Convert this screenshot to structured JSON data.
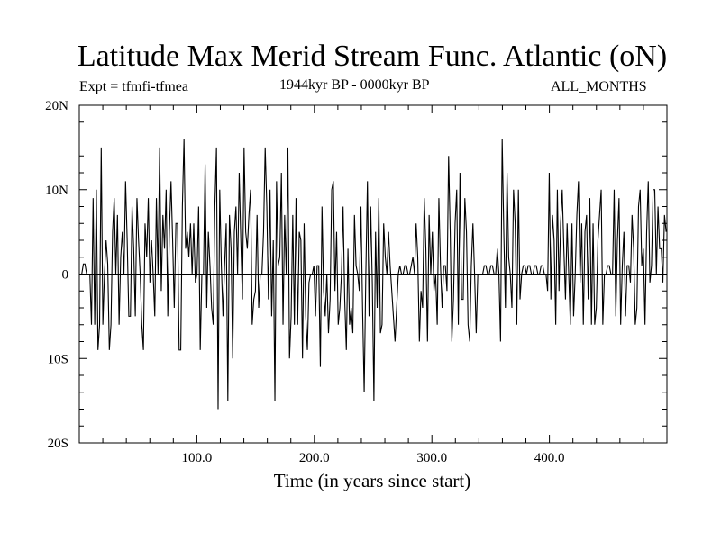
{
  "chart_data": {
    "type": "line",
    "title": "Latitude Max Merid Stream Func. Atlantic (oN)",
    "subtitle_left": "Expt = tfmfi-tfmea",
    "subtitle_center": "1944kyr BP - 0000kyr BP",
    "subtitle_right": "ALL_MONTHS",
    "xlabel": "Time (in years since start)",
    "ylabel": "",
    "xlim": [
      0,
      500
    ],
    "ylim": [
      -20,
      20
    ],
    "x_ticks": [
      100,
      200,
      300,
      400
    ],
    "x_tick_labels": [
      "100.0",
      "200.0",
      "300.0",
      "400.0"
    ],
    "y_ticks": [
      -20,
      -10,
      0,
      10,
      20
    ],
    "y_tick_labels": [
      "20S",
      "10S",
      "0",
      "10N",
      "20N"
    ],
    "grid": false,
    "series": [
      {
        "values": [
          0,
          0,
          1.2,
          1.2,
          0,
          0,
          0,
          -6,
          9,
          -6,
          10,
          -9,
          -6,
          15,
          -6,
          0,
          4,
          1.2,
          -9,
          -6,
          5,
          9,
          0,
          7,
          -6,
          2,
          5,
          0,
          11,
          4,
          -5,
          -5,
          8,
          3,
          -5,
          9,
          4,
          0,
          -6,
          -9,
          6,
          2,
          9,
          -1,
          4,
          0,
          -5,
          9,
          0,
          15,
          -2,
          7,
          3,
          10,
          -5,
          5,
          11,
          4,
          -4,
          6,
          6,
          -9,
          -9,
          8,
          16,
          3,
          5,
          2,
          6,
          0,
          6,
          -1,
          0,
          8,
          -9,
          0,
          0,
          13,
          -4,
          5,
          1,
          -4,
          -6,
          8,
          15,
          -16,
          10,
          1,
          -5,
          1,
          6,
          -15,
          7,
          3,
          -10,
          5,
          8,
          0,
          12,
          4,
          -3,
          15,
          5,
          3,
          7,
          10,
          -6,
          -3,
          -2,
          7,
          -4,
          0,
          0,
          5,
          15,
          8,
          -3,
          10,
          -5,
          4,
          -15,
          11,
          1,
          2,
          12,
          -6,
          7,
          0,
          15,
          -10,
          -5,
          7,
          -6,
          9,
          -6,
          5,
          4,
          -10,
          6,
          -5,
          -9,
          -1,
          0,
          0,
          1,
          -5,
          1,
          1,
          -11,
          8,
          -2,
          -5,
          0,
          -7,
          -3,
          10,
          11,
          -2,
          5,
          -6,
          -4,
          0,
          8,
          -3,
          -9,
          3,
          -6,
          -4,
          -7,
          7,
          1,
          0,
          -2,
          8,
          -4,
          -14,
          0,
          11,
          -5,
          8,
          -1,
          -15,
          5,
          -4,
          9,
          -7,
          -6,
          6,
          2,
          0,
          5,
          1,
          -2,
          -5,
          -8,
          -4,
          0,
          1,
          0,
          0,
          1,
          1,
          0,
          0,
          1,
          2,
          0,
          6,
          2,
          -8,
          -2,
          -4,
          9,
          3,
          -8,
          7,
          0,
          5,
          -2,
          0,
          -6,
          9,
          1,
          -4,
          1,
          1,
          -2,
          14,
          5,
          -8,
          -3,
          6,
          10,
          -6,
          12,
          -3,
          -3,
          9,
          5,
          -6,
          -8,
          1,
          6,
          0,
          -7,
          0,
          0,
          0,
          0,
          1,
          1,
          0,
          0,
          1,
          1,
          0,
          0,
          3,
          0,
          -8,
          16,
          5,
          -4,
          12,
          2,
          0,
          -4,
          10,
          6,
          -6,
          10,
          -3,
          0,
          1,
          1,
          0,
          1,
          1,
          0,
          0,
          1,
          1,
          0,
          0,
          1,
          1,
          0,
          0,
          -2,
          12,
          -3,
          7,
          4,
          -6,
          10,
          -2,
          6,
          10,
          3,
          -3,
          6,
          0,
          -6,
          6,
          -5,
          0,
          7,
          11,
          -1,
          6,
          -6,
          5,
          7,
          -3,
          9,
          -6,
          6,
          -6,
          -4,
          4,
          7,
          10,
          -6,
          0,
          0,
          1,
          1,
          0,
          0,
          10,
          -5,
          4,
          9,
          -6,
          1,
          5,
          -5,
          1,
          1,
          -1,
          7,
          3,
          -6,
          -4,
          8,
          10,
          1,
          3,
          -6,
          5,
          11,
          -1,
          1,
          10,
          10,
          0,
          8,
          3,
          3,
          -1,
          7,
          5
        ],
        "color": "#000000"
      }
    ]
  }
}
